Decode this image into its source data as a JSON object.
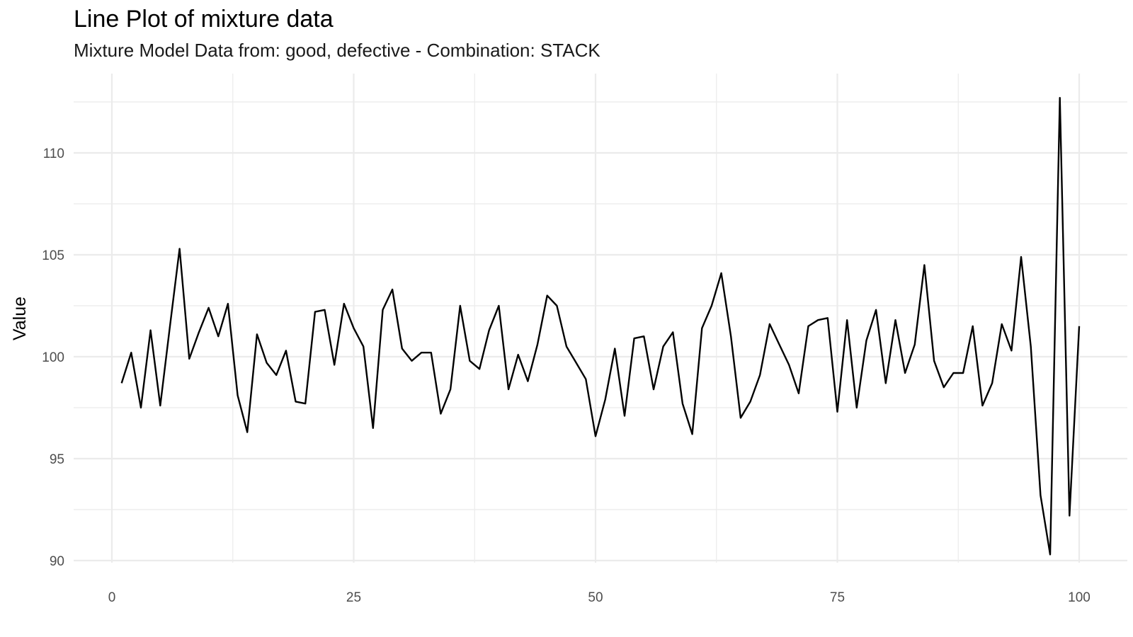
{
  "chart_data": {
    "type": "line",
    "title": "Line Plot of mixture data",
    "subtitle": "Mixture Model Data from: good, defective - Combination: STACK",
    "xlabel": "",
    "ylabel": "Value",
    "xlim": [
      -4,
      104
    ],
    "ylim": [
      89.5,
      112.8
    ],
    "x_ticks": [
      0,
      25,
      50,
      75,
      100
    ],
    "x_tick_labels": [
      "0",
      "25",
      "50",
      "75",
      "100"
    ],
    "y_ticks": [
      90,
      95,
      100,
      105,
      110
    ],
    "y_tick_labels": [
      "90",
      "95",
      "100",
      "105",
      "110"
    ],
    "grid": true,
    "line_color": "#000000",
    "grid_color": "#ebebeb",
    "series": [
      {
        "x": [
          1,
          2,
          3,
          4,
          5,
          6,
          7,
          8,
          9,
          10,
          11,
          12,
          13,
          14,
          15,
          16,
          17,
          18,
          19,
          20,
          21,
          22,
          23,
          24,
          25,
          26,
          27,
          28,
          29,
          30,
          31,
          32,
          33,
          34,
          35,
          36,
          37,
          38,
          39,
          40,
          41,
          42,
          43,
          44,
          45,
          46,
          47,
          48,
          49,
          50,
          51,
          52,
          53,
          54,
          55,
          56,
          57,
          58,
          59,
          60,
          61,
          62,
          63,
          64,
          65,
          66,
          67,
          68,
          69,
          70,
          71,
          72,
          73,
          74,
          75,
          76,
          77,
          78,
          79,
          80,
          81,
          82,
          83,
          84,
          85,
          86,
          87,
          88,
          89,
          90,
          91,
          92,
          93,
          94,
          95,
          96,
          97,
          98,
          99,
          100
        ],
        "values": [
          98.7,
          100.2,
          97.5,
          101.3,
          97.6,
          101.5,
          105.3,
          99.9,
          101.2,
          102.4,
          101.0,
          102.6,
          98.1,
          96.3,
          101.1,
          99.7,
          99.1,
          100.3,
          97.8,
          97.7,
          102.2,
          102.3,
          99.6,
          102.6,
          101.4,
          100.5,
          96.5,
          102.3,
          103.3,
          100.4,
          99.8,
          100.2,
          100.2,
          97.2,
          98.4,
          102.5,
          99.8,
          99.4,
          101.3,
          102.5,
          98.4,
          100.1,
          98.8,
          100.6,
          103.0,
          102.5,
          100.5,
          99.7,
          98.9,
          96.1,
          97.9,
          100.4,
          97.1,
          100.9,
          101.0,
          98.4,
          100.5,
          101.2,
          97.7,
          96.2,
          101.4,
          102.5,
          104.1,
          101.0,
          97.0,
          97.8,
          99.1,
          101.6,
          100.6,
          99.6,
          98.2,
          101.5,
          101.8,
          101.9,
          97.3,
          101.8,
          97.5,
          100.8,
          102.3,
          98.7,
          101.8,
          99.2,
          100.6,
          104.5,
          99.8,
          98.5,
          99.2,
          99.2,
          101.5,
          97.6,
          98.7,
          101.6,
          100.3,
          104.9,
          100.5,
          93.2,
          90.3,
          112.7,
          92.2,
          101.5
        ]
      }
    ]
  }
}
